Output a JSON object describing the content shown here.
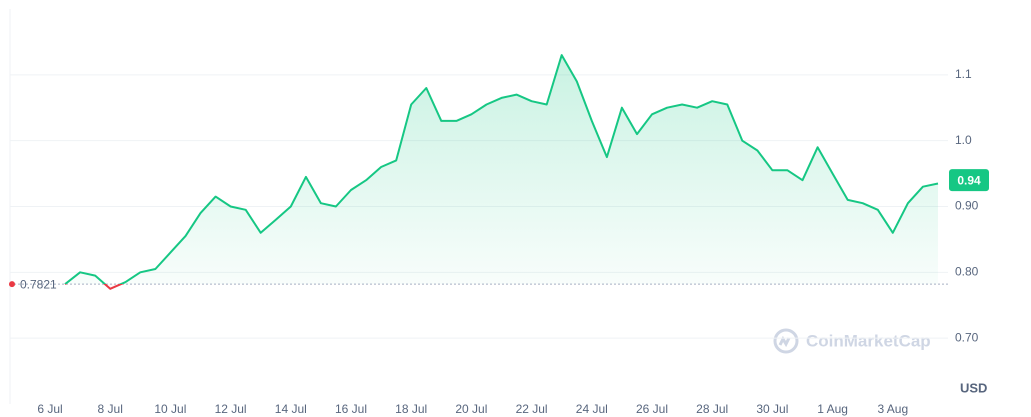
{
  "chart_data": {
    "type": "line",
    "x": [
      "6 Jul",
      null,
      null,
      null,
      "8 Jul",
      null,
      null,
      null,
      "10 Jul",
      null,
      null,
      null,
      "12 Jul",
      null,
      null,
      null,
      "14 Jul",
      null,
      null,
      null,
      "16 Jul",
      null,
      null,
      null,
      "18 Jul",
      null,
      null,
      null,
      "20 Jul",
      null,
      null,
      null,
      "22 Jul",
      null,
      null,
      null,
      "24 Jul",
      null,
      null,
      null,
      "26 Jul",
      null,
      null,
      null,
      "28 Jul",
      null,
      null,
      null,
      "30 Jul",
      null,
      null,
      null,
      "1 Aug",
      null,
      null,
      null,
      "3 Aug",
      null,
      null,
      null
    ],
    "series": [
      {
        "color": "#16c784",
        "values": [
          null,
          0.782,
          0.8,
          0.795,
          0.775,
          0.785,
          0.8,
          0.805,
          0.83,
          0.855,
          0.89,
          0.915,
          0.9,
          0.895,
          0.86,
          0.88,
          0.9,
          0.945,
          0.905,
          0.9,
          0.925,
          0.94,
          0.96,
          0.97,
          1.055,
          1.08,
          1.03,
          1.03,
          1.04,
          1.055,
          1.065,
          1.07,
          1.06,
          1.055,
          1.13,
          1.09,
          1.03,
          0.975,
          1.05,
          1.01,
          1.04,
          1.05,
          1.055,
          1.05,
          1.06,
          1.055,
          1.0,
          0.985,
          0.955,
          0.955,
          0.94,
          0.99,
          0.95,
          0.91,
          0.905,
          0.895,
          0.86,
          0.905,
          0.93,
          0.935
        ]
      }
    ],
    "below_color": "#ea3943",
    "baseline": 0.7821,
    "last_price": 0.94,
    "ylim": [
      0.6,
      1.2
    ],
    "yticks": [
      {
        "value": 0.7,
        "label": "0.70"
      },
      {
        "value": 0.8,
        "label": "0.80"
      },
      {
        "value": 0.9,
        "label": "0.90"
      },
      {
        "value": 1.0,
        "label": "1.0"
      },
      1.1
    ],
    "grid": true,
    "currency": "USD",
    "watermark": "CoinMarketCap"
  }
}
